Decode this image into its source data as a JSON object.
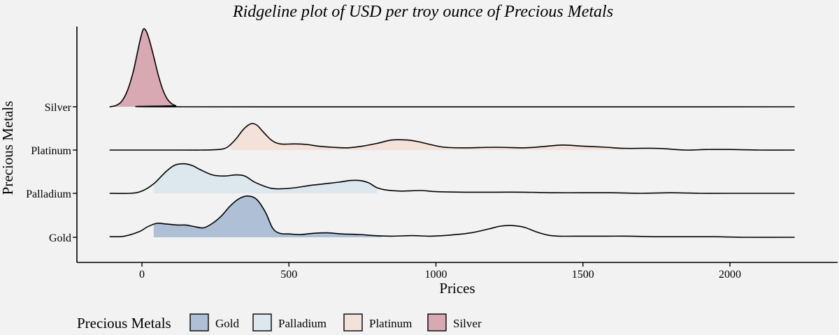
{
  "chart_data": {
    "type": "ridgeline",
    "title": "Ridgeline plot of USD per troy ounce of Precious Metals",
    "xlabel": "Prices",
    "ylabel": "Precious Metals",
    "xlim": [
      -110,
      2220
    ],
    "xticks": [
      0,
      500,
      1000,
      1500,
      2000
    ],
    "categories": [
      "Gold",
      "Palladium",
      "Platinum",
      "Silver"
    ],
    "grid": false,
    "legend": {
      "title": "Precious Metals",
      "position": "bottom-left",
      "entries": [
        "Gold",
        "Palladium",
        "Platinum",
        "Silver"
      ]
    },
    "colors": {
      "Gold": "#aebfd6",
      "Palladium": "#dde7ee",
      "Platinum": "#f4e1da",
      "Silver": "#d8a8b3"
    },
    "series": [
      {
        "name": "Gold",
        "fill_range": [
          40,
          815
        ],
        "points": [
          [
            -110,
            0.01
          ],
          [
            -60,
            0.02
          ],
          [
            -10,
            0.1
          ],
          [
            20,
            0.19
          ],
          [
            50,
            0.25
          ],
          [
            80,
            0.24
          ],
          [
            120,
            0.22
          ],
          [
            150,
            0.22
          ],
          [
            180,
            0.19
          ],
          [
            210,
            0.17
          ],
          [
            240,
            0.25
          ],
          [
            270,
            0.38
          ],
          [
            300,
            0.56
          ],
          [
            330,
            0.69
          ],
          [
            360,
            0.74
          ],
          [
            390,
            0.68
          ],
          [
            420,
            0.45
          ],
          [
            445,
            0.16
          ],
          [
            470,
            0.07
          ],
          [
            500,
            0.06
          ],
          [
            540,
            0.05
          ],
          [
            580,
            0.07
          ],
          [
            630,
            0.08
          ],
          [
            680,
            0.06
          ],
          [
            740,
            0.05
          ],
          [
            790,
            0.03
          ],
          [
            850,
            0.02
          ],
          [
            920,
            0.03
          ],
          [
            980,
            0.02
          ],
          [
            1050,
            0.04
          ],
          [
            1120,
            0.08
          ],
          [
            1180,
            0.15
          ],
          [
            1220,
            0.2
          ],
          [
            1260,
            0.21
          ],
          [
            1300,
            0.18
          ],
          [
            1340,
            0.1
          ],
          [
            1380,
            0.04
          ],
          [
            1420,
            0.02
          ],
          [
            1500,
            0.02
          ],
          [
            1580,
            0.02
          ],
          [
            1660,
            0.02
          ],
          [
            1750,
            0.01
          ],
          [
            1850,
            0.01
          ],
          [
            1950,
            0.01
          ],
          [
            2050,
            0.0
          ],
          [
            2220,
            0.0
          ]
        ]
      },
      {
        "name": "Palladium",
        "fill_range": [
          40,
          800
        ],
        "points": [
          [
            -110,
            0.0
          ],
          [
            -40,
            0.0
          ],
          [
            0,
            0.04
          ],
          [
            40,
            0.17
          ],
          [
            80,
            0.38
          ],
          [
            110,
            0.5
          ],
          [
            140,
            0.53
          ],
          [
            170,
            0.5
          ],
          [
            200,
            0.42
          ],
          [
            240,
            0.33
          ],
          [
            280,
            0.31
          ],
          [
            320,
            0.33
          ],
          [
            350,
            0.31
          ],
          [
            380,
            0.21
          ],
          [
            410,
            0.14
          ],
          [
            440,
            0.09
          ],
          [
            470,
            0.08
          ],
          [
            520,
            0.1
          ],
          [
            570,
            0.14
          ],
          [
            620,
            0.17
          ],
          [
            670,
            0.2
          ],
          [
            710,
            0.23
          ],
          [
            740,
            0.23
          ],
          [
            770,
            0.19
          ],
          [
            800,
            0.1
          ],
          [
            830,
            0.06
          ],
          [
            880,
            0.04
          ],
          [
            950,
            0.05
          ],
          [
            1000,
            0.03
          ],
          [
            1100,
            0.02
          ],
          [
            1200,
            0.02
          ],
          [
            1300,
            0.02
          ],
          [
            1400,
            0.01
          ],
          [
            1500,
            0.01
          ],
          [
            1600,
            0.01
          ],
          [
            1700,
            0.0
          ],
          [
            1800,
            0.01
          ],
          [
            1900,
            0.0
          ],
          [
            2000,
            0.0
          ],
          [
            2220,
            0.0
          ]
        ]
      },
      {
        "name": "Platinum",
        "fill_range": [
          300,
          1640
        ],
        "points": [
          [
            -110,
            0.0
          ],
          [
            100,
            0.0
          ],
          [
            200,
            0.0
          ],
          [
            260,
            0.01
          ],
          [
            290,
            0.05
          ],
          [
            320,
            0.2
          ],
          [
            345,
            0.37
          ],
          [
            370,
            0.47
          ],
          [
            390,
            0.45
          ],
          [
            410,
            0.34
          ],
          [
            440,
            0.18
          ],
          [
            470,
            0.11
          ],
          [
            520,
            0.11
          ],
          [
            560,
            0.1
          ],
          [
            600,
            0.07
          ],
          [
            650,
            0.05
          ],
          [
            700,
            0.04
          ],
          [
            750,
            0.07
          ],
          [
            800,
            0.12
          ],
          [
            850,
            0.18
          ],
          [
            900,
            0.18
          ],
          [
            940,
            0.15
          ],
          [
            980,
            0.1
          ],
          [
            1030,
            0.05
          ],
          [
            1100,
            0.04
          ],
          [
            1200,
            0.05
          ],
          [
            1300,
            0.04
          ],
          [
            1360,
            0.06
          ],
          [
            1430,
            0.09
          ],
          [
            1500,
            0.07
          ],
          [
            1580,
            0.05
          ],
          [
            1640,
            0.03
          ],
          [
            1750,
            0.03
          ],
          [
            1850,
            0.0
          ],
          [
            1920,
            0.01
          ],
          [
            2000,
            0.01
          ],
          [
            2100,
            0.0
          ],
          [
            2220,
            0.0
          ]
        ]
      },
      {
        "name": "Silver",
        "fill_range": [
          -110,
          110
        ],
        "points": [
          [
            -110,
            0.0
          ],
          [
            -90,
            0.02
          ],
          [
            -70,
            0.09
          ],
          [
            -50,
            0.28
          ],
          [
            -30,
            0.62
          ],
          [
            -15,
            0.98
          ],
          [
            -5,
            1.22
          ],
          [
            5,
            1.39
          ],
          [
            15,
            1.35
          ],
          [
            25,
            1.2
          ],
          [
            40,
            0.9
          ],
          [
            55,
            0.58
          ],
          [
            70,
            0.32
          ],
          [
            85,
            0.15
          ],
          [
            100,
            0.06
          ],
          [
            115,
            0.02
          ],
          [
            140,
            0.0
          ],
          [
            2220,
            0.0
          ]
        ]
      }
    ]
  }
}
